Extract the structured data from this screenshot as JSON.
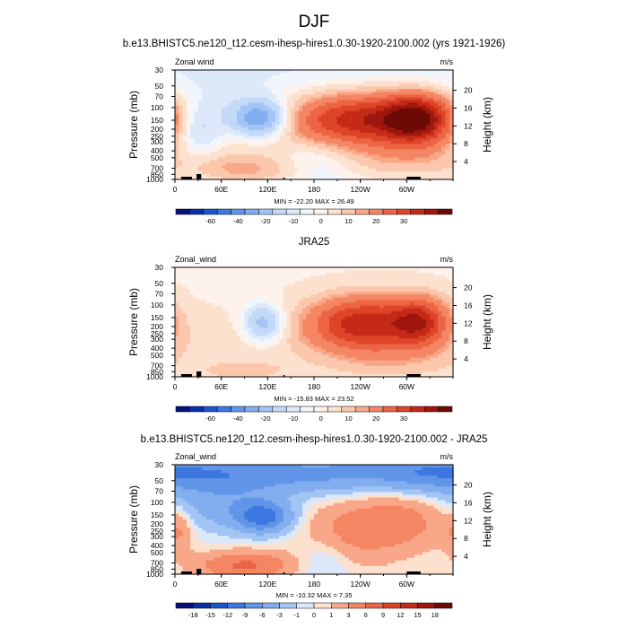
{
  "figure": {
    "title": "DJF"
  },
  "panel_titles": [
    "b.e13.BHISTC5.ne120_t12.cesm-ihesp-hires1.0.30-1920-2100.002 (yrs 1921-1926)",
    "JRA25",
    "b.e13.BHISTC5.ne120_t12.cesm-ihesp-hires1.0.30-1920-2100.002 - JRA25"
  ],
  "colors": {
    "diverging_20": [
      "#08107a",
      "#0a2fa8",
      "#1c55d0",
      "#3d77e0",
      "#6095e8",
      "#82aef0",
      "#a3c5f5",
      "#c3d9f8",
      "#dde9fb",
      "#f1f6fd",
      "#fdf3ec",
      "#fde1cf",
      "#fbc7ad",
      "#f8a888",
      "#f48664",
      "#ec6443",
      "#dd4428",
      "#c42a17",
      "#9e160d",
      "#6e0a06"
    ]
  },
  "chart_data": [
    {
      "type": "heatmap",
      "name": "model",
      "title": "b.e13.BHISTC5.ne120_t12.cesm-ihesp-hires1.0.30-1920-2100.002 (yrs 1921-1926)",
      "left_label": "Zonal wind",
      "right_label": "m/s",
      "xlabel": "",
      "ylabel": "Pressure (mb)",
      "ylabel_right": "Height (km)",
      "x_ticks": [
        "0",
        "60E",
        "120E",
        "180",
        "120W",
        "60W"
      ],
      "x_range": [
        0,
        360
      ],
      "pressure_ticks": [
        "30",
        "50",
        "70",
        "100",
        "150",
        "200",
        "250",
        "300",
        "400",
        "500",
        "700",
        "850",
        "1000"
      ],
      "pressure_range": [
        30,
        1000
      ],
      "height_ticks": [
        "4",
        "8",
        "12",
        "16",
        "20"
      ],
      "min": -22.2,
      "max": 26.49,
      "minmax_text": "MIN = -22.20  MAX = 26.49",
      "colorbar_ticks": [
        "-60",
        "-40",
        "-20",
        "-10",
        "0",
        "10",
        "20",
        "30"
      ],
      "features": [
        {
          "lon": 242,
          "p": 145,
          "sp": 70,
          "sz": 0.6,
          "amp": 30
        },
        {
          "lon": 315,
          "p": 140,
          "sp": 30,
          "sz": 0.55,
          "amp": 27
        },
        {
          "lon": 110,
          "p": 140,
          "sp": 25,
          "sz": 0.4,
          "amp": -22
        },
        {
          "lon": 95,
          "p": 750,
          "sp": 55,
          "sz": 0.35,
          "amp": 9
        },
        {
          "lon": 290,
          "p": 650,
          "sp": 60,
          "sz": 0.5,
          "amp": 5
        },
        {
          "lon": 30,
          "p": 220,
          "sp": 20,
          "sz": 0.6,
          "amp": -8
        },
        {
          "lon": 180,
          "p": 500,
          "sp": 40,
          "sz": 0.5,
          "amp": -6
        }
      ],
      "base": {
        "type": "model",
        "value": -2.5
      }
    },
    {
      "type": "heatmap",
      "name": "observed",
      "title": "JRA25",
      "left_label": "Zonal_wind",
      "right_label": "m/s",
      "xlabel": "",
      "ylabel": "Pressure (mb)",
      "ylabel_right": "Height (km)",
      "x_ticks": [
        "0",
        "60E",
        "120E",
        "180",
        "120W",
        "60W"
      ],
      "x_range": [
        0,
        360
      ],
      "pressure_ticks": [
        "30",
        "50",
        "70",
        "100",
        "150",
        "200",
        "250",
        "300",
        "400",
        "500",
        "700",
        "850",
        "1000"
      ],
      "pressure_range": [
        30,
        1000
      ],
      "height_ticks": [
        "4",
        "8",
        "12",
        "16",
        "20"
      ],
      "min": -15.83,
      "max": 23.52,
      "minmax_text": "MIN = -15.83  MAX = 23.52",
      "colorbar_ticks": [
        "-60",
        "-40",
        "-20",
        "-10",
        "0",
        "10",
        "20",
        "30"
      ],
      "features": [
        {
          "lon": 245,
          "p": 180,
          "sp": 50,
          "sz": 0.6,
          "amp": 26
        },
        {
          "lon": 318,
          "p": 170,
          "sp": 25,
          "sz": 0.55,
          "amp": 20
        },
        {
          "lon": 115,
          "p": 180,
          "sp": 18,
          "sz": 0.4,
          "amp": -15
        },
        {
          "lon": 90,
          "p": 850,
          "sp": 50,
          "sz": 0.3,
          "amp": 4
        },
        {
          "lon": 280,
          "p": 600,
          "sp": 60,
          "sz": 0.5,
          "amp": 4
        }
      ],
      "base": {
        "type": "obs",
        "value": 2.0
      }
    },
    {
      "type": "heatmap",
      "name": "difference",
      "title": "b.e13.BHISTC5.ne120_t12.cesm-ihesp-hires1.0.30-1920-2100.002 - JRA25",
      "left_label": "Zonal_wind",
      "right_label": "m/s",
      "xlabel": "",
      "ylabel": "Pressure (mb)",
      "ylabel_right": "Height (km)",
      "x_ticks": [
        "0",
        "60E",
        "120E",
        "180",
        "120W",
        "60W"
      ],
      "x_range": [
        0,
        360
      ],
      "pressure_ticks": [
        "30",
        "50",
        "70",
        "100",
        "150",
        "200",
        "250",
        "300",
        "400",
        "500",
        "700",
        "850",
        "1000"
      ],
      "pressure_range": [
        30,
        1000
      ],
      "height_ticks": [
        "4",
        "8",
        "12",
        "16",
        "20"
      ],
      "min": -10.32,
      "max": 7.35,
      "minmax_text": "MIN = -10.32  MAX =  7.35",
      "colorbar_ticks": [
        "-18",
        "-15",
        "-12",
        "-9",
        "-6",
        "-3",
        "-1",
        "0",
        "1",
        "3",
        "6",
        "9",
        "12",
        "15",
        "18"
      ],
      "features": [
        {
          "lon": 80,
          "p": 40,
          "sp": 110,
          "sz": 0.5,
          "amp": -6
        },
        {
          "lon": 300,
          "p": 35,
          "sp": 80,
          "sz": 0.4,
          "amp": -5
        },
        {
          "lon": 115,
          "p": 160,
          "sp": 25,
          "sz": 0.35,
          "amp": -10
        },
        {
          "lon": 60,
          "p": 120,
          "sp": 45,
          "sz": 0.5,
          "amp": -4
        },
        {
          "lon": 230,
          "p": 260,
          "sp": 45,
          "sz": 0.7,
          "amp": 4
        },
        {
          "lon": 300,
          "p": 180,
          "sp": 40,
          "sz": 0.6,
          "amp": 3.5
        },
        {
          "lon": 90,
          "p": 750,
          "sp": 40,
          "sz": 0.3,
          "amp": 6.5
        },
        {
          "lon": 5,
          "p": 250,
          "sp": 12,
          "sz": 0.5,
          "amp": 3
        },
        {
          "lon": 195,
          "p": 600,
          "sp": 25,
          "sz": 0.6,
          "amp": -2
        }
      ],
      "base": {
        "type": "diff",
        "value": 0
      }
    }
  ]
}
